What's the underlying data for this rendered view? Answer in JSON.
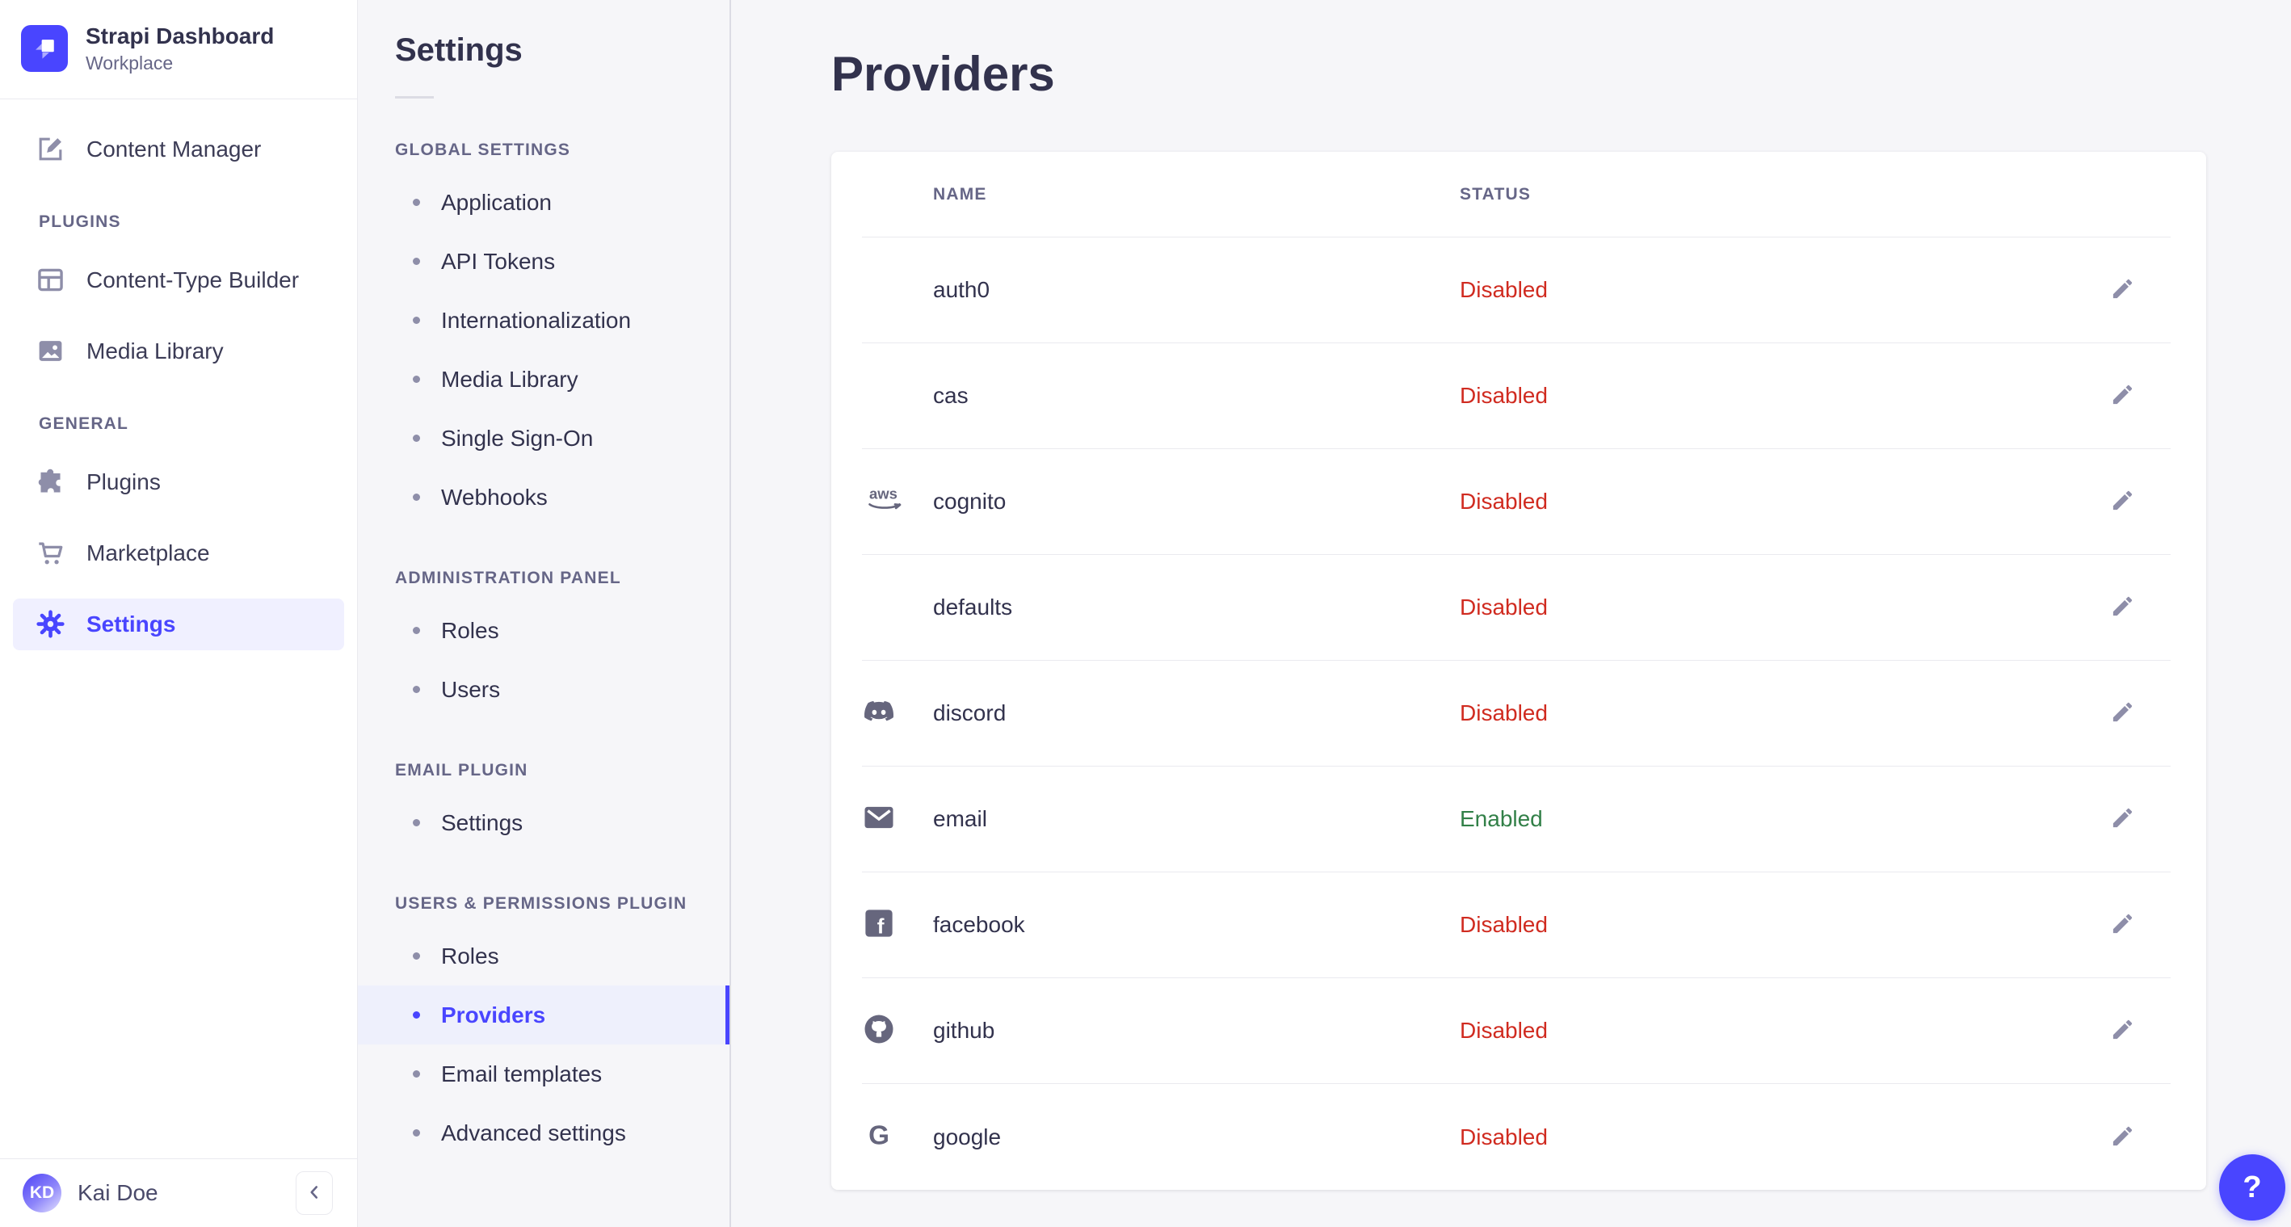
{
  "brand": {
    "title": "Strapi Dashboard",
    "subtitle": "Workplace",
    "logo_icon": "strapi-logo"
  },
  "colors": {
    "accent": "#4945ff",
    "active_bg": "#f0f0ff",
    "subnav_active_bg": "#eef0fc",
    "enabled_green": "#328048",
    "disabled_red": "#d02b20",
    "page_bg": "#f6f6f9"
  },
  "sidebar": {
    "sections": [
      {
        "label": null,
        "items": [
          {
            "label": "Content Manager",
            "icon": "content-manager",
            "active": false
          }
        ]
      },
      {
        "label": "PLUGINS",
        "items": [
          {
            "label": "Content-Type Builder",
            "icon": "content-type-builder",
            "active": false
          },
          {
            "label": "Media Library",
            "icon": "media-library",
            "active": false
          }
        ]
      },
      {
        "label": "GENERAL",
        "items": [
          {
            "label": "Plugins",
            "icon": "puzzle",
            "active": false
          },
          {
            "label": "Marketplace",
            "icon": "cart",
            "active": false
          },
          {
            "label": "Settings",
            "icon": "gear",
            "active": true
          }
        ]
      }
    ],
    "user": {
      "initials": "KD",
      "name": "Kai Doe"
    },
    "collapse_icon": "chevron-left"
  },
  "subnav": {
    "title": "Settings",
    "sections": [
      {
        "label": "GLOBAL SETTINGS",
        "items": [
          "Application",
          "API Tokens",
          "Internationalization",
          "Media Library",
          "Single Sign-On",
          "Webhooks"
        ]
      },
      {
        "label": "ADMINISTRATION PANEL",
        "items": [
          "Roles",
          "Users"
        ]
      },
      {
        "label": "EMAIL PLUGIN",
        "items": [
          "Settings"
        ]
      },
      {
        "label": "USERS & PERMISSIONS PLUGIN",
        "items": [
          "Roles",
          "Providers",
          "Email templates",
          "Advanced settings"
        ],
        "active_item": "Providers"
      }
    ]
  },
  "main": {
    "title": "Providers",
    "table": {
      "columns": [
        "NAME",
        "STATUS"
      ],
      "rows": [
        {
          "name": "auth0",
          "icon": null,
          "status": "Disabled"
        },
        {
          "name": "cas",
          "icon": null,
          "status": "Disabled"
        },
        {
          "name": "cognito",
          "icon": "aws",
          "status": "Disabled"
        },
        {
          "name": "defaults",
          "icon": null,
          "status": "Disabled"
        },
        {
          "name": "discord",
          "icon": "discord",
          "status": "Disabled"
        },
        {
          "name": "email",
          "icon": "envelope",
          "status": "Enabled"
        },
        {
          "name": "facebook",
          "icon": "facebook",
          "status": "Disabled"
        },
        {
          "name": "github",
          "icon": "github",
          "status": "Disabled"
        },
        {
          "name": "google",
          "icon": "google",
          "status": "Disabled"
        }
      ],
      "edit_icon": "pencil"
    }
  },
  "status_colors": {
    "Enabled": "#328048",
    "Disabled": "#d02b20"
  },
  "help_button": {
    "label": "?"
  }
}
